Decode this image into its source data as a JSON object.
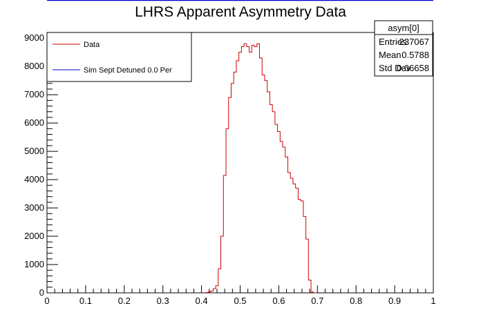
{
  "chart_data": {
    "type": "histogram",
    "title": "LHRS Apparent Asymmetry Data",
    "xlabel": "",
    "ylabel": "",
    "xlim": [
      0,
      1
    ],
    "ylim": [
      0,
      9200
    ],
    "x_ticks": [
      "0",
      "0.1",
      "0.2",
      "0.3",
      "0.4",
      "0.5",
      "0.6",
      "0.7",
      "0.8",
      "0.9",
      "1"
    ],
    "y_ticks": [
      "0",
      "1000",
      "2000",
      "3000",
      "4000",
      "5000",
      "6000",
      "7000",
      "8000",
      "9000"
    ],
    "grid": false,
    "legend_position": "top-left",
    "legend": [
      {
        "label": "Data",
        "color": "#cc0000"
      },
      {
        "label": "Sim Sept Detuned 0.0 Per",
        "color": "#0000cc"
      }
    ],
    "stats": {
      "name": "asym[0]",
      "rows": [
        {
          "label": "Entries",
          "value": "237067"
        },
        {
          "label": "Mean",
          "value": "0.5788"
        },
        {
          "label": "Std Dev",
          "value": "0.06658"
        }
      ]
    },
    "series": [
      {
        "name": "Data",
        "color": "#cc0000",
        "bin_edges_start": 0.41,
        "bin_width": 0.00667,
        "counts": [
          10,
          30,
          60,
          150,
          250,
          850,
          2000,
          4150,
          5800,
          6900,
          7400,
          7800,
          8200,
          8500,
          8700,
          8800,
          8700,
          8500,
          8750,
          8700,
          8800,
          8300,
          7700,
          7500,
          7100,
          6650,
          6400,
          5950,
          5700,
          5350,
          5150,
          4800,
          4250,
          4050,
          3850,
          3700,
          3300,
          3250,
          2700,
          1900,
          450,
          30,
          0
        ]
      }
    ]
  }
}
